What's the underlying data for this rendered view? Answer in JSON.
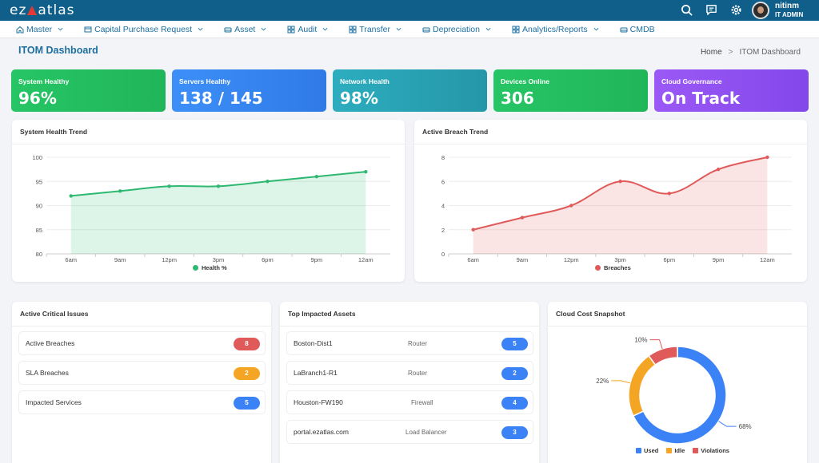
{
  "app": {
    "logo_text_left": "ez",
    "logo_text_right": "atlas"
  },
  "user": {
    "name": "nitinm",
    "role": "IT ADMIN"
  },
  "icons": {
    "search": "search-icon",
    "chat": "chat-icon",
    "settings": "gear-icon"
  },
  "nav": {
    "items": [
      {
        "label": "Master",
        "icon": "home-icon"
      },
      {
        "label": "Capital Purchase Request",
        "icon": "cart-icon"
      },
      {
        "label": "Asset",
        "icon": "asset-icon"
      },
      {
        "label": "Audit",
        "icon": "grid-icon"
      },
      {
        "label": "Transfer",
        "icon": "grid-icon"
      },
      {
        "label": "Depreciation",
        "icon": "asset-icon"
      },
      {
        "label": "Analytics/Reports",
        "icon": "grid-icon"
      },
      {
        "label": "CMDB",
        "icon": "asset-icon"
      }
    ]
  },
  "page": {
    "title": "ITOM Dashboard"
  },
  "breadcrumb": {
    "home": "Home",
    "separator": ">",
    "current": "ITOM Dashboard"
  },
  "kpis": [
    {
      "label": "System Healthy",
      "value": "96%",
      "color": "#22c55e"
    },
    {
      "label": "Servers Healthy",
      "value": "138 / 145",
      "color": "#3b82f6"
    },
    {
      "label": "Network Health",
      "value": "98%",
      "color": "#2aa3b5"
    },
    {
      "label": "Devices Online",
      "value": "306",
      "color": "#22c55e"
    },
    {
      "label": "Cloud Governance",
      "value": "On Track",
      "color": "#8b5cf6"
    }
  ],
  "panels": {
    "health_trend": "System Health Trend",
    "breach_trend": "Active Breach Trend",
    "critical_issues": "Active Critical Issues",
    "impacted_assets": "Top Impacted Assets",
    "cloud_cost": "Cloud Cost Snapshot"
  },
  "chart_data": [
    {
      "type": "area",
      "title": "System Health Trend",
      "categories": [
        "6am",
        "9am",
        "12pm",
        "3pm",
        "6pm",
        "9pm",
        "12am"
      ],
      "series": [
        {
          "name": "Health %",
          "values": [
            92,
            93,
            94,
            94,
            95,
            96,
            97
          ],
          "color": "#2eb872"
        }
      ],
      "ylim": [
        80,
        100
      ],
      "yticks": [
        80,
        85,
        90,
        95,
        100
      ],
      "grid": true,
      "legend": "bottom"
    },
    {
      "type": "area",
      "title": "Active Breach Trend",
      "categories": [
        "6am",
        "9am",
        "12pm",
        "3pm",
        "6pm",
        "9pm",
        "12am"
      ],
      "series": [
        {
          "name": "Breaches",
          "values": [
            2,
            3,
            4,
            6,
            5,
            7,
            8
          ],
          "color": "#e05a5a"
        }
      ],
      "ylim": [
        0,
        8
      ],
      "yticks": [
        0,
        2,
        4,
        6,
        8
      ],
      "grid": true,
      "legend": "bottom"
    },
    {
      "type": "pie",
      "title": "Cloud Cost Snapshot",
      "donut": true,
      "slices": [
        {
          "label": "Used",
          "value": 68,
          "display": "68%",
          "color": "#3b82f6"
        },
        {
          "label": "Idle",
          "value": 22,
          "display": "22%",
          "color": "#f5a524"
        },
        {
          "label": "Violations",
          "value": 10,
          "display": "10%",
          "color": "#e05a5a"
        }
      ],
      "legend": "bottom"
    }
  ],
  "critical_issues": [
    {
      "label": "Active Breaches",
      "count": "8",
      "color": "#e05a5a"
    },
    {
      "label": "SLA Breaches",
      "count": "2",
      "color": "#f5a524"
    },
    {
      "label": "Impacted Services",
      "count": "5",
      "color": "#3b82f6"
    }
  ],
  "impacted_assets": [
    {
      "name": "Boston-Dist1",
      "type": "Router",
      "count": "5"
    },
    {
      "name": "LaBranch1-R1",
      "type": "Router",
      "count": "2"
    },
    {
      "name": "Houston-FW190",
      "type": "Firewall",
      "count": "4"
    },
    {
      "name": "portal.ezatlas.com",
      "type": "Load Balancer",
      "count": "3"
    }
  ]
}
